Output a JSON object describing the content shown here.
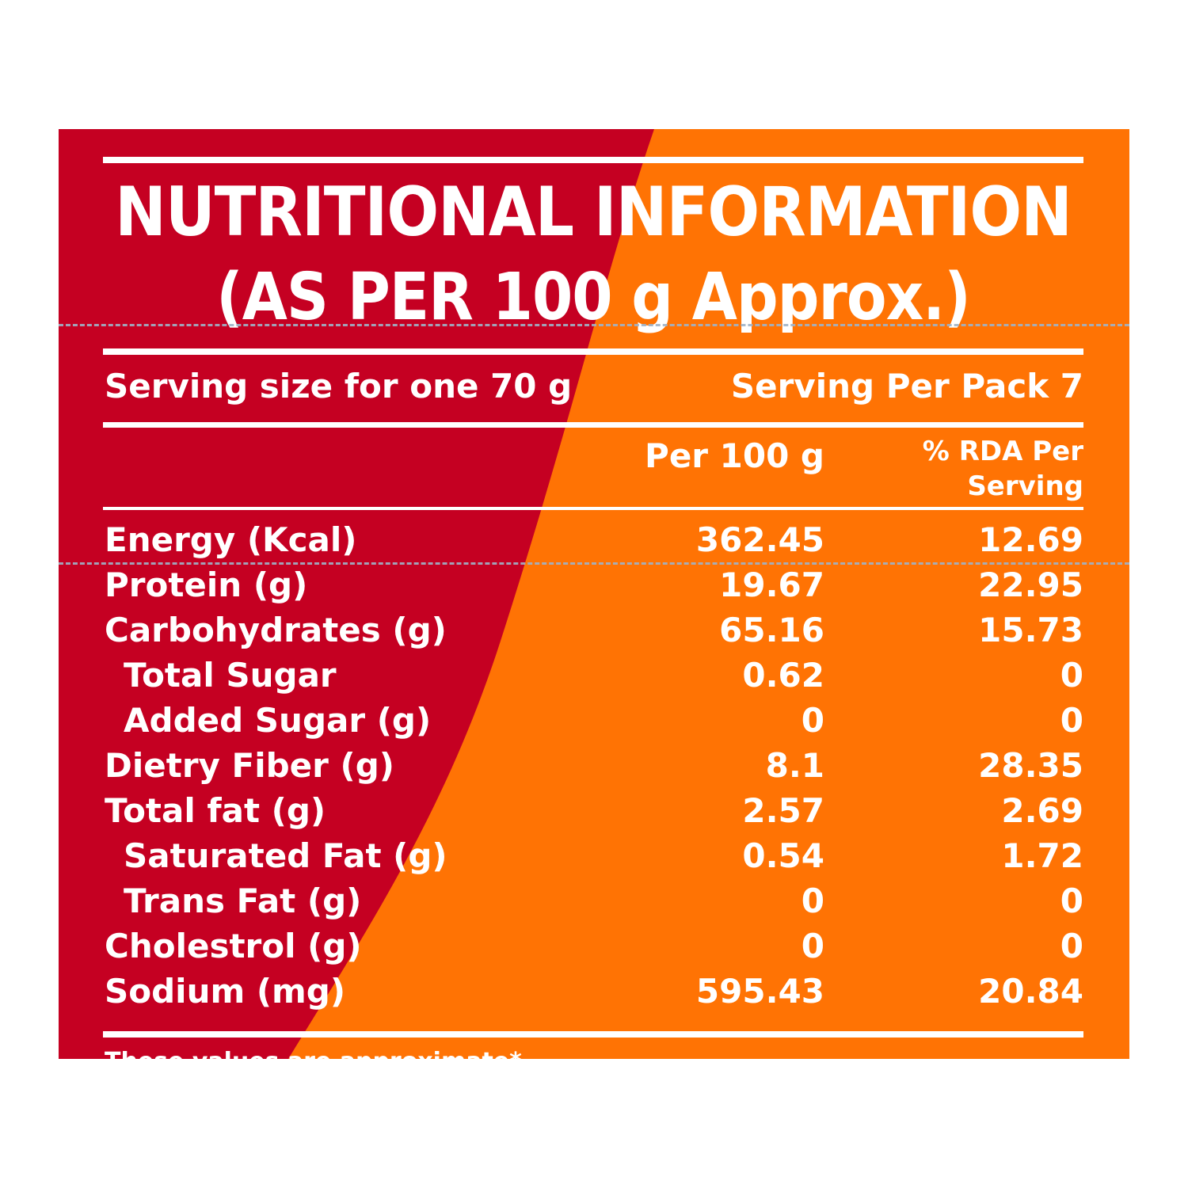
{
  "colors": {
    "red": "#c50022",
    "orange": "#ff7304",
    "text": "#ffffff",
    "dashed_line": "#9fb3c8"
  },
  "title": {
    "line1": "NUTRITIONAL INFORMATION",
    "line2": "(AS PER 100 g Approx.)"
  },
  "serving": {
    "size": "Serving size for one 70 g",
    "per_pack": "Serving Per Pack 7"
  },
  "columns": {
    "per100": "Per 100 g",
    "rda_line1": "% RDA Per",
    "rda_line2": "Serving"
  },
  "rows": [
    {
      "label": "Energy (Kcal)",
      "per100": "362.45",
      "rda": "12.69"
    },
    {
      "label": "Protein (g)",
      "per100": "19.67",
      "rda": "22.95"
    },
    {
      "label": "Carbohydrates (g)",
      "per100": "65.16",
      "rda": "15.73"
    },
    {
      "label": "Total Sugar",
      "per100": "0.62",
      "rda": "0"
    },
    {
      "label": "Added Sugar (g)",
      "per100": "0",
      "rda": "0"
    },
    {
      "label": "Dietry Fiber (g)",
      "per100": "8.1",
      "rda": "28.35"
    },
    {
      "label": "Total fat (g)",
      "per100": "2.57",
      "rda": "2.69"
    },
    {
      "label": "Saturated Fat (g)",
      "per100": "0.54",
      "rda": "1.72"
    },
    {
      "label": "Trans Fat (g)",
      "per100": "0",
      "rda": "0"
    },
    {
      "label": "Cholestrol (g)",
      "per100": "0",
      "rda": "0"
    },
    {
      "label": "Sodium (mg)",
      "per100": "595.43",
      "rda": "20.84"
    }
  ],
  "footnote": "These values are approximate*"
}
